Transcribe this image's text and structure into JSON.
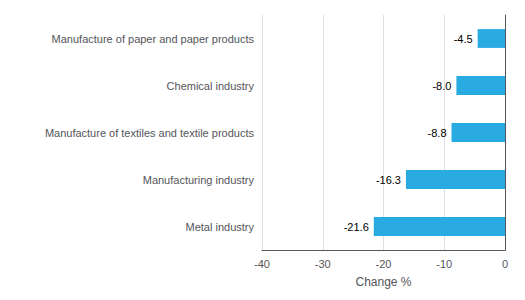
{
  "chart_data": {
    "type": "bar",
    "orientation": "horizontal",
    "categories": [
      "Metal industry",
      "Manufacturing industry",
      "Manufacture of textiles and textile products",
      "Chemical industry",
      "Manufacture of paper and paper products"
    ],
    "values": [
      -21.6,
      -16.3,
      -8.8,
      -8.0,
      -4.5
    ],
    "value_labels": [
      "-21.6",
      "-16.3",
      "-8.8",
      "-8.0",
      "-4.5"
    ],
    "data_labels": true,
    "color": "#29abe2",
    "xlabel": "Change %",
    "xlim": [
      -40,
      0
    ],
    "xticks": [
      -40,
      -30,
      -20,
      -10,
      0
    ],
    "grid": true
  }
}
